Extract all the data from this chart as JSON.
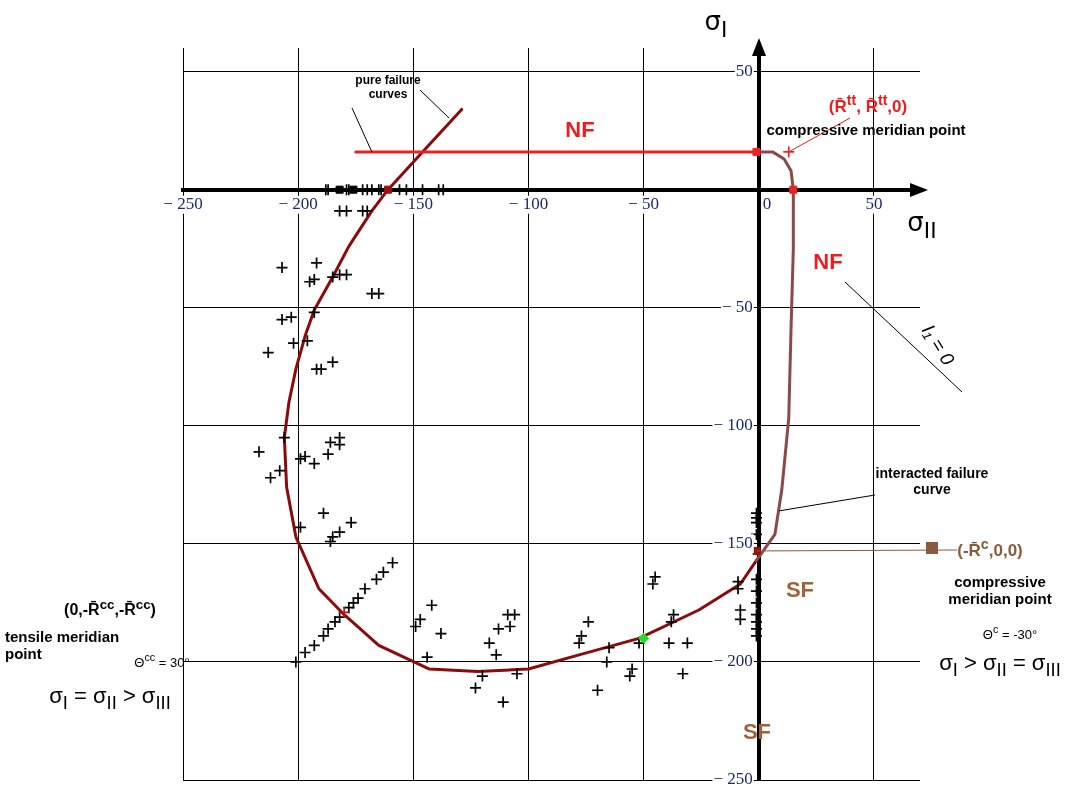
{
  "chart_data": {
    "type": "scatter",
    "xlabel": "σ$_{II}$",
    "ylabel": "σ$_{I}$",
    "xlim": [
      -250,
      70
    ],
    "ylim": [
      -250,
      60
    ],
    "xticks": [
      {
        "value": -250,
        "label": "− 250"
      },
      {
        "value": -200,
        "label": "− 200"
      },
      {
        "value": -150,
        "label": "− 150"
      },
      {
        "value": -100,
        "label": "− 100"
      },
      {
        "value": -50,
        "label": "− 50"
      },
      0,
      50
    ],
    "yticks": [
      {
        "value": -250,
        "label": "− 250"
      },
      {
        "value": -200,
        "label": "− 200"
      },
      {
        "value": -150,
        "label": "− 150"
      },
      {
        "value": -100,
        "label": "− 100"
      },
      {
        "value": -50,
        "label": "− 50"
      },
      50
    ],
    "grid": true,
    "series": [
      {
        "type": "line",
        "color": "#8b0a0a",
        "x": [
          -129,
          -145,
          -161,
          -168,
          -178,
          -185,
          -193,
          -197,
          -201,
          -204,
          -206,
          -205,
          -201,
          -191,
          -180,
          -165,
          -143,
          -122,
          -100,
          -78,
          -52,
          -26,
          -8,
          -1
        ],
        "values": [
          34,
          17,
          0,
          -9,
          -24,
          -37,
          -51,
          -62,
          -76,
          -90,
          -105,
          -126,
          -147,
          -169,
          -180,
          -193,
          -203,
          -204,
          -203,
          -197,
          -190,
          -178,
          -167,
          -157
        ]
      },
      {
        "type": "line",
        "color": "#8b4a4a",
        "x": [
          -1,
          7,
          10,
          13,
          14,
          15,
          15,
          14,
          11,
          6,
          -1
        ],
        "values": [
          -157,
          -146,
          -127,
          -97,
          -59,
          -25,
          0,
          8,
          13,
          16,
          16
        ]
      },
      {
        "type": "line",
        "color": "#ee2020",
        "x": [
          -175,
          -1
        ],
        "values": [
          16,
          16
        ]
      },
      {
        "type": "scatter",
        "color": "#000000",
        "marker": "cross",
        "x": [
          -188,
          -187,
          -179,
          -178,
          -172,
          -170,
          -168,
          -165,
          -164,
          -156,
          -153,
          -146,
          -139,
          -137,
          -182,
          -179,
          -172,
          -170,
          -207,
          -192,
          -193,
          -195,
          -185,
          -182,
          -179,
          -168,
          -165,
          -207,
          -203,
          -193,
          -202,
          -196,
          -213,
          -192,
          -190,
          -185,
          -206,
          -217,
          -199,
          -197,
          -193,
          -187,
          -186,
          -182,
          -182,
          -212,
          -208,
          -189,
          -199,
          -177,
          -182,
          -185,
          -186,
          -201,
          -197,
          -193,
          -189,
          -187,
          -184,
          -182,
          -178,
          -176,
          -174,
          -171,
          -166,
          -163,
          -159,
          -149,
          -147,
          -142,
          -138,
          -144,
          -123,
          -120,
          -111,
          -117,
          -114,
          -113,
          -109,
          -106,
          -108,
          -105,
          -74,
          -77,
          -78,
          -65,
          -66,
          -70,
          -55,
          -56,
          -52,
          -45,
          -46,
          -37,
          -38,
          -39,
          -31,
          -33,
          -9,
          -9,
          -8,
          -8,
          -1,
          -1,
          -1,
          -1,
          -1,
          -1,
          -1,
          -1,
          -1,
          -1,
          -1
        ],
        "values": [
          0,
          0,
          0,
          0,
          0,
          0,
          0,
          0,
          0,
          0,
          0,
          0,
          0,
          0,
          -9,
          -9,
          -9,
          -9,
          -33,
          -31,
          -38,
          -39,
          -37,
          -36,
          -36,
          -44,
          -44,
          -55,
          -54,
          -52,
          -65,
          -64,
          -69,
          -76,
          -76,
          -73,
          -105,
          -111,
          -114,
          -113,
          -116,
          -112,
          -107,
          -105,
          -108,
          -122,
          -119,
          -137,
          -143,
          -141,
          -145,
          -147,
          -149,
          -200,
          -196,
          -193,
          -189,
          -186,
          -183,
          -181,
          -177,
          -175,
          -173,
          -169,
          -165,
          -162,
          -158,
          -185,
          -182,
          -176,
          -188,
          -198,
          -211,
          -206,
          -217,
          -192,
          -197,
          -186,
          -180,
          -180,
          -185,
          -205,
          -183,
          -189,
          -192,
          -194,
          -200,
          -212,
          -203,
          -206,
          -192,
          -164,
          -167,
          -180,
          -183,
          -192,
          -192,
          -205,
          -166,
          -169,
          -178,
          -182,
          -137,
          -139,
          -141,
          -146,
          -165,
          -170,
          -175,
          -180,
          -183,
          -186,
          -189
        ]
      },
      {
        "type": "scatter",
        "color": "#000000",
        "marker": "square",
        "x": [
          -182,
          -176
        ],
        "values": [
          0,
          0
        ]
      },
      {
        "type": "scatter",
        "color": "#9b0f0f",
        "marker": "square",
        "x": [
          -161,
          -1
        ],
        "values": [
          0,
          -153
        ]
      },
      {
        "type": "scatter",
        "color": "#ee2020",
        "marker": "square",
        "x": [
          -1,
          15
        ],
        "values": [
          16,
          0
        ]
      },
      {
        "type": "scatter",
        "color": "#ee2020",
        "marker": "cross",
        "x": [
          13
        ],
        "values": [
          16
        ]
      },
      {
        "type": "scatter",
        "color": "#b01818",
        "marker": "cross",
        "x": [
          -180
        ],
        "values": [
          -179
        ]
      },
      {
        "type": "scatter",
        "color": "#22dd22",
        "marker": "diamond",
        "x": [
          -50
        ],
        "values": [
          -190
        ]
      }
    ],
    "annotations": [
      {
        "text": "pure failure curves",
        "x": -168,
        "y": 16
      },
      "NF",
      "NF",
      {
        "text": "(R̄$^{tt}$, R̄$^{tt}$,0)",
        "x": 13,
        "y": 16
      },
      "compressive meridian point",
      "I₁ = 0",
      {
        "text": "interacted failure curve",
        "x": 9,
        "y": -136
      },
      {
        "text": "(-R̄$^{c}$,0,0)",
        "x": -1,
        "y": -153
      },
      "compressive meridian point",
      "Θ$^{c}$ = -30°",
      "σ$_{I}$ > σ$_{II}$ = σ$_{III}$",
      "SF",
      "SF",
      "(0,-R̄$^{cc}$,-R̄$^{cc}$)",
      "tensile meridian point",
      "Θ$^{cc}$ = 30°",
      "σ$_{I}$ = σ$_{II}$ > σ$_{III}$"
    ]
  }
}
